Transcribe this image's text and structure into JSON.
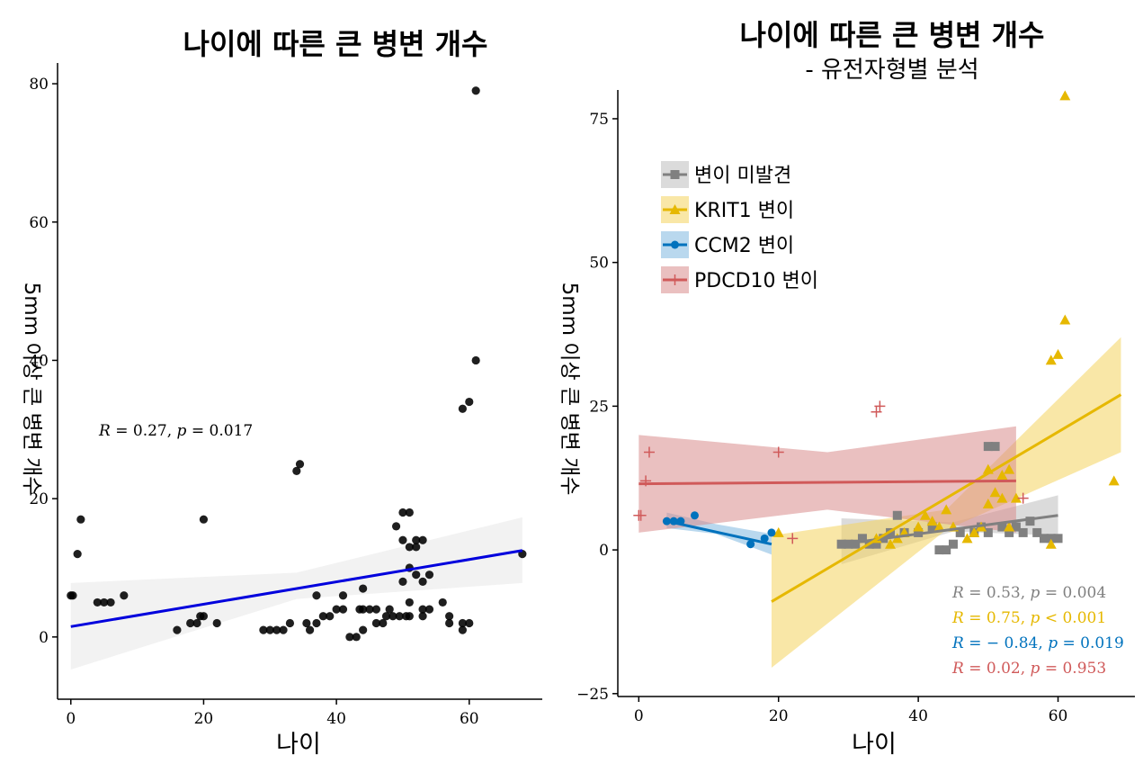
{
  "chart_data": [
    {
      "type": "scatter",
      "title": "나이에 따른 큰 병변 개수",
      "xlabel": "나이",
      "ylabel": "5mm 이상 큰 병변 개수",
      "xlim": [
        -2,
        71
      ],
      "ylim": [
        -9,
        83
      ],
      "xticks": [
        0,
        20,
        40,
        60
      ],
      "yticks": [
        0,
        20,
        40,
        60,
        80
      ],
      "annotation": {
        "R": "0.27",
        "p": "0.017"
      },
      "fit": {
        "x": [
          0,
          68
        ],
        "y": [
          1.5,
          12.5
        ],
        "color": "#0000DD"
      },
      "band": {
        "x": [
          0,
          34,
          68
        ],
        "lower": [
          -4.7,
          5.5,
          7.8
        ],
        "upper": [
          7.8,
          9.3,
          17.3
        ]
      },
      "points": [
        [
          0,
          6
        ],
        [
          0.3,
          6
        ],
        [
          1,
          12
        ],
        [
          1.5,
          17
        ],
        [
          4,
          5
        ],
        [
          5,
          5
        ],
        [
          6,
          5
        ],
        [
          8,
          6
        ],
        [
          16,
          1
        ],
        [
          18,
          2
        ],
        [
          19,
          2
        ],
        [
          19.5,
          3
        ],
        [
          20,
          3
        ],
        [
          20,
          17
        ],
        [
          22,
          2
        ],
        [
          29,
          1
        ],
        [
          30,
          1
        ],
        [
          31,
          1
        ],
        [
          32,
          1
        ],
        [
          33,
          2
        ],
        [
          34,
          24
        ],
        [
          34.5,
          25
        ],
        [
          35.5,
          2
        ],
        [
          36,
          1
        ],
        [
          37,
          2
        ],
        [
          37,
          6
        ],
        [
          38,
          3
        ],
        [
          39,
          3
        ],
        [
          40,
          4
        ],
        [
          41,
          4
        ],
        [
          41,
          6
        ],
        [
          42,
          0
        ],
        [
          43,
          0
        ],
        [
          43.5,
          4
        ],
        [
          44,
          1
        ],
        [
          44,
          4
        ],
        [
          44,
          7
        ],
        [
          45,
          4
        ],
        [
          46,
          2
        ],
        [
          46,
          4
        ],
        [
          47,
          2
        ],
        [
          47.5,
          3
        ],
        [
          48,
          4
        ],
        [
          48.5,
          3
        ],
        [
          49,
          16
        ],
        [
          49.5,
          3
        ],
        [
          50,
          8
        ],
        [
          50,
          14
        ],
        [
          50,
          18
        ],
        [
          50.5,
          3
        ],
        [
          51,
          3
        ],
        [
          51,
          5
        ],
        [
          51,
          10
        ],
        [
          51,
          13
        ],
        [
          51,
          18
        ],
        [
          52,
          9
        ],
        [
          52,
          13
        ],
        [
          52,
          14
        ],
        [
          53,
          3
        ],
        [
          53,
          4
        ],
        [
          53,
          8
        ],
        [
          53,
          14
        ],
        [
          54,
          4
        ],
        [
          54,
          9
        ],
        [
          56,
          5
        ],
        [
          57,
          2
        ],
        [
          57,
          3
        ],
        [
          59,
          1
        ],
        [
          59,
          2
        ],
        [
          59,
          33
        ],
        [
          60,
          2
        ],
        [
          60,
          34
        ],
        [
          61,
          40
        ],
        [
          61,
          79
        ],
        [
          68,
          12
        ]
      ]
    },
    {
      "type": "scatter",
      "title": "나이에 따른 큰 병변 개수",
      "subtitle": "- 유전자형별 분석",
      "xlabel": "나이",
      "ylabel": "5mm 이상 큰 병변 개수",
      "xlim": [
        -3,
        71
      ],
      "ylim": [
        -25.5,
        80
      ],
      "xticks": [
        0,
        20,
        40,
        60
      ],
      "yticks": [
        -25,
        0,
        25,
        50,
        75
      ],
      "legend": {
        "position": "top-left"
      },
      "series": [
        {
          "name": "변이 미발견",
          "color": "#808080",
          "fill": "#BDBDBD",
          "marker": "square",
          "stat": {
            "R": "0.53",
            "p": "= 0.004"
          },
          "fit": {
            "x": [
              29,
              60
            ],
            "y": [
              1,
              6
            ]
          },
          "band": {
            "x": [
              29,
              45,
              60
            ],
            "lower": [
              -2.5,
              3.2,
              2.5
            ],
            "upper": [
              5.5,
              4.8,
              9.5
            ]
          },
          "points": [
            [
              29,
              1
            ],
            [
              30,
              1
            ],
            [
              31,
              1
            ],
            [
              32,
              2
            ],
            [
              33,
              1
            ],
            [
              34,
              1
            ],
            [
              35,
              2
            ],
            [
              36,
              3
            ],
            [
              37,
              6
            ],
            [
              38,
              3
            ],
            [
              40,
              3
            ],
            [
              42,
              4
            ],
            [
              43,
              0
            ],
            [
              44,
              0
            ],
            [
              45,
              1
            ],
            [
              46,
              3
            ],
            [
              48,
              3
            ],
            [
              49,
              4
            ],
            [
              50,
              3
            ],
            [
              50,
              18
            ],
            [
              51,
              18
            ],
            [
              52,
              4
            ],
            [
              53,
              3
            ],
            [
              54,
              4
            ],
            [
              55,
              3
            ],
            [
              56,
              5
            ],
            [
              57,
              3
            ],
            [
              58,
              2
            ],
            [
              59,
              2
            ],
            [
              60,
              2
            ]
          ]
        },
        {
          "name": "KRIT1 변이",
          "color": "#E6B800",
          "fill": "#F4D35E",
          "marker": "triangle",
          "stat": {
            "R": "0.75",
            "p": "< 0.001"
          },
          "fit": {
            "x": [
              19,
              69
            ],
            "y": [
              -9,
              27
            ]
          },
          "band": {
            "x": [
              19,
              44,
              69
            ],
            "lower": [
              -20.5,
              3.5,
              17
            ],
            "upper": [
              2.5,
              7,
              37
            ]
          },
          "points": [
            [
              20,
              3
            ],
            [
              34,
              2
            ],
            [
              36,
              1
            ],
            [
              37,
              2
            ],
            [
              38,
              3
            ],
            [
              40,
              4
            ],
            [
              41,
              6
            ],
            [
              42,
              5
            ],
            [
              43,
              4
            ],
            [
              44,
              7
            ],
            [
              45,
              4
            ],
            [
              47,
              2
            ],
            [
              48,
              3
            ],
            [
              49,
              4
            ],
            [
              50,
              8
            ],
            [
              50,
              14
            ],
            [
              51,
              10
            ],
            [
              52,
              9
            ],
            [
              52,
              13
            ],
            [
              53,
              14
            ],
            [
              53,
              4
            ],
            [
              54,
              9
            ],
            [
              59,
              1
            ],
            [
              59,
              33
            ],
            [
              60,
              34
            ],
            [
              61,
              40
            ],
            [
              61,
              79
            ],
            [
              68,
              12
            ]
          ]
        },
        {
          "name": "CCM2 변이",
          "color": "#0072BD",
          "fill": "#7FB8E0",
          "marker": "circle",
          "stat": {
            "R": "− 0.84",
            "p": "= 0.019"
          },
          "fit": {
            "x": [
              4,
              19
            ],
            "y": [
              5,
              1
            ]
          },
          "band": {
            "x": [
              4,
              11,
              19
            ],
            "lower": [
              3.8,
              2.8,
              -0.8
            ],
            "upper": [
              6.5,
              4.5,
              2.8
            ]
          },
          "points": [
            [
              4,
              5
            ],
            [
              5,
              5
            ],
            [
              6,
              5
            ],
            [
              8,
              6
            ],
            [
              16,
              1
            ],
            [
              18,
              2
            ],
            [
              19,
              3
            ]
          ]
        },
        {
          "name": "PDCD10 변이",
          "color": "#D05A5A",
          "fill": "#D98C8C",
          "marker": "cross",
          "stat": {
            "R": "0.02",
            "p": "= 0.953"
          },
          "fit": {
            "x": [
              0,
              54
            ],
            "y": [
              11.5,
              12
            ]
          },
          "band": {
            "x": [
              0,
              27,
              54
            ],
            "lower": [
              3,
              7,
              3
            ],
            "upper": [
              20,
              17,
              21.5
            ]
          },
          "points": [
            [
              0,
              6
            ],
            [
              0.3,
              6
            ],
            [
              1,
              12
            ],
            [
              1.5,
              17
            ],
            [
              20,
              17
            ],
            [
              22,
              2
            ],
            [
              34,
              24
            ],
            [
              34.5,
              25
            ],
            [
              55,
              9
            ]
          ]
        }
      ]
    }
  ]
}
